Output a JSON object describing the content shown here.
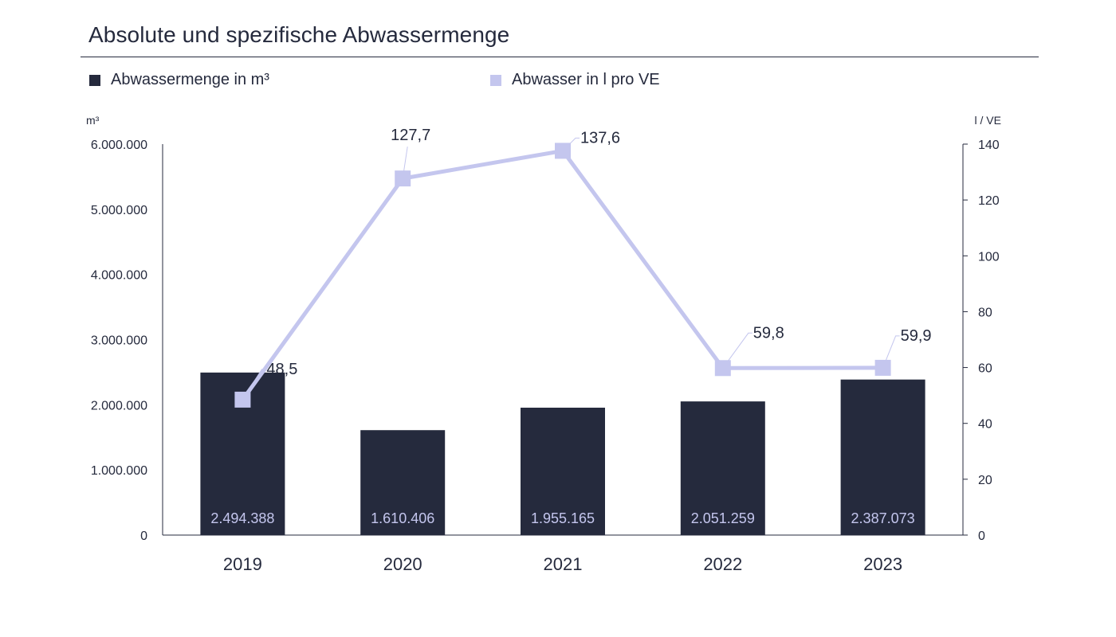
{
  "colors": {
    "bar": "#252a3d",
    "line": "#c4c6ee",
    "text": "#252a3d",
    "bar_label": "#c4c6ee",
    "axis": "#252a3d"
  },
  "chart_data": {
    "type": "bar",
    "title": "Absolute und spezifische Abwassermenge",
    "categories": [
      "2019",
      "2020",
      "2021",
      "2022",
      "2023"
    ],
    "series": [
      {
        "name": "Abwassermenge in m³",
        "type": "bar",
        "axis": "left",
        "values": [
          2494388,
          1610406,
          1955165,
          2051259,
          2387073
        ],
        "labels": [
          "2.494.388",
          "1.610.406",
          "1.955.165",
          "2.051.259",
          "2.387.073"
        ]
      },
      {
        "name": "Abwasser in l pro VE",
        "type": "line",
        "axis": "right",
        "values": [
          48.5,
          127.7,
          137.6,
          59.8,
          59.9
        ],
        "labels": [
          "48,5",
          "127,7",
          "137,6",
          "59,8",
          "59,9"
        ]
      }
    ],
    "left_axis": {
      "unit": "m³",
      "ylim": [
        0,
        6000000
      ],
      "ticks": [
        0,
        1000000,
        2000000,
        3000000,
        4000000,
        5000000,
        6000000
      ],
      "tick_labels": [
        "0",
        "1.000.000",
        "2.000.000",
        "3.000.000",
        "4.000.000",
        "5.000.000",
        "6.000.000"
      ]
    },
    "right_axis": {
      "unit": "l / VE",
      "ylim": [
        0,
        140
      ],
      "ticks": [
        0,
        20,
        40,
        60,
        80,
        100,
        120,
        140
      ],
      "tick_labels": [
        "0",
        "20",
        "40",
        "60",
        "80",
        "100",
        "120",
        "140"
      ]
    },
    "legend_position": "top-left",
    "grid": false
  }
}
